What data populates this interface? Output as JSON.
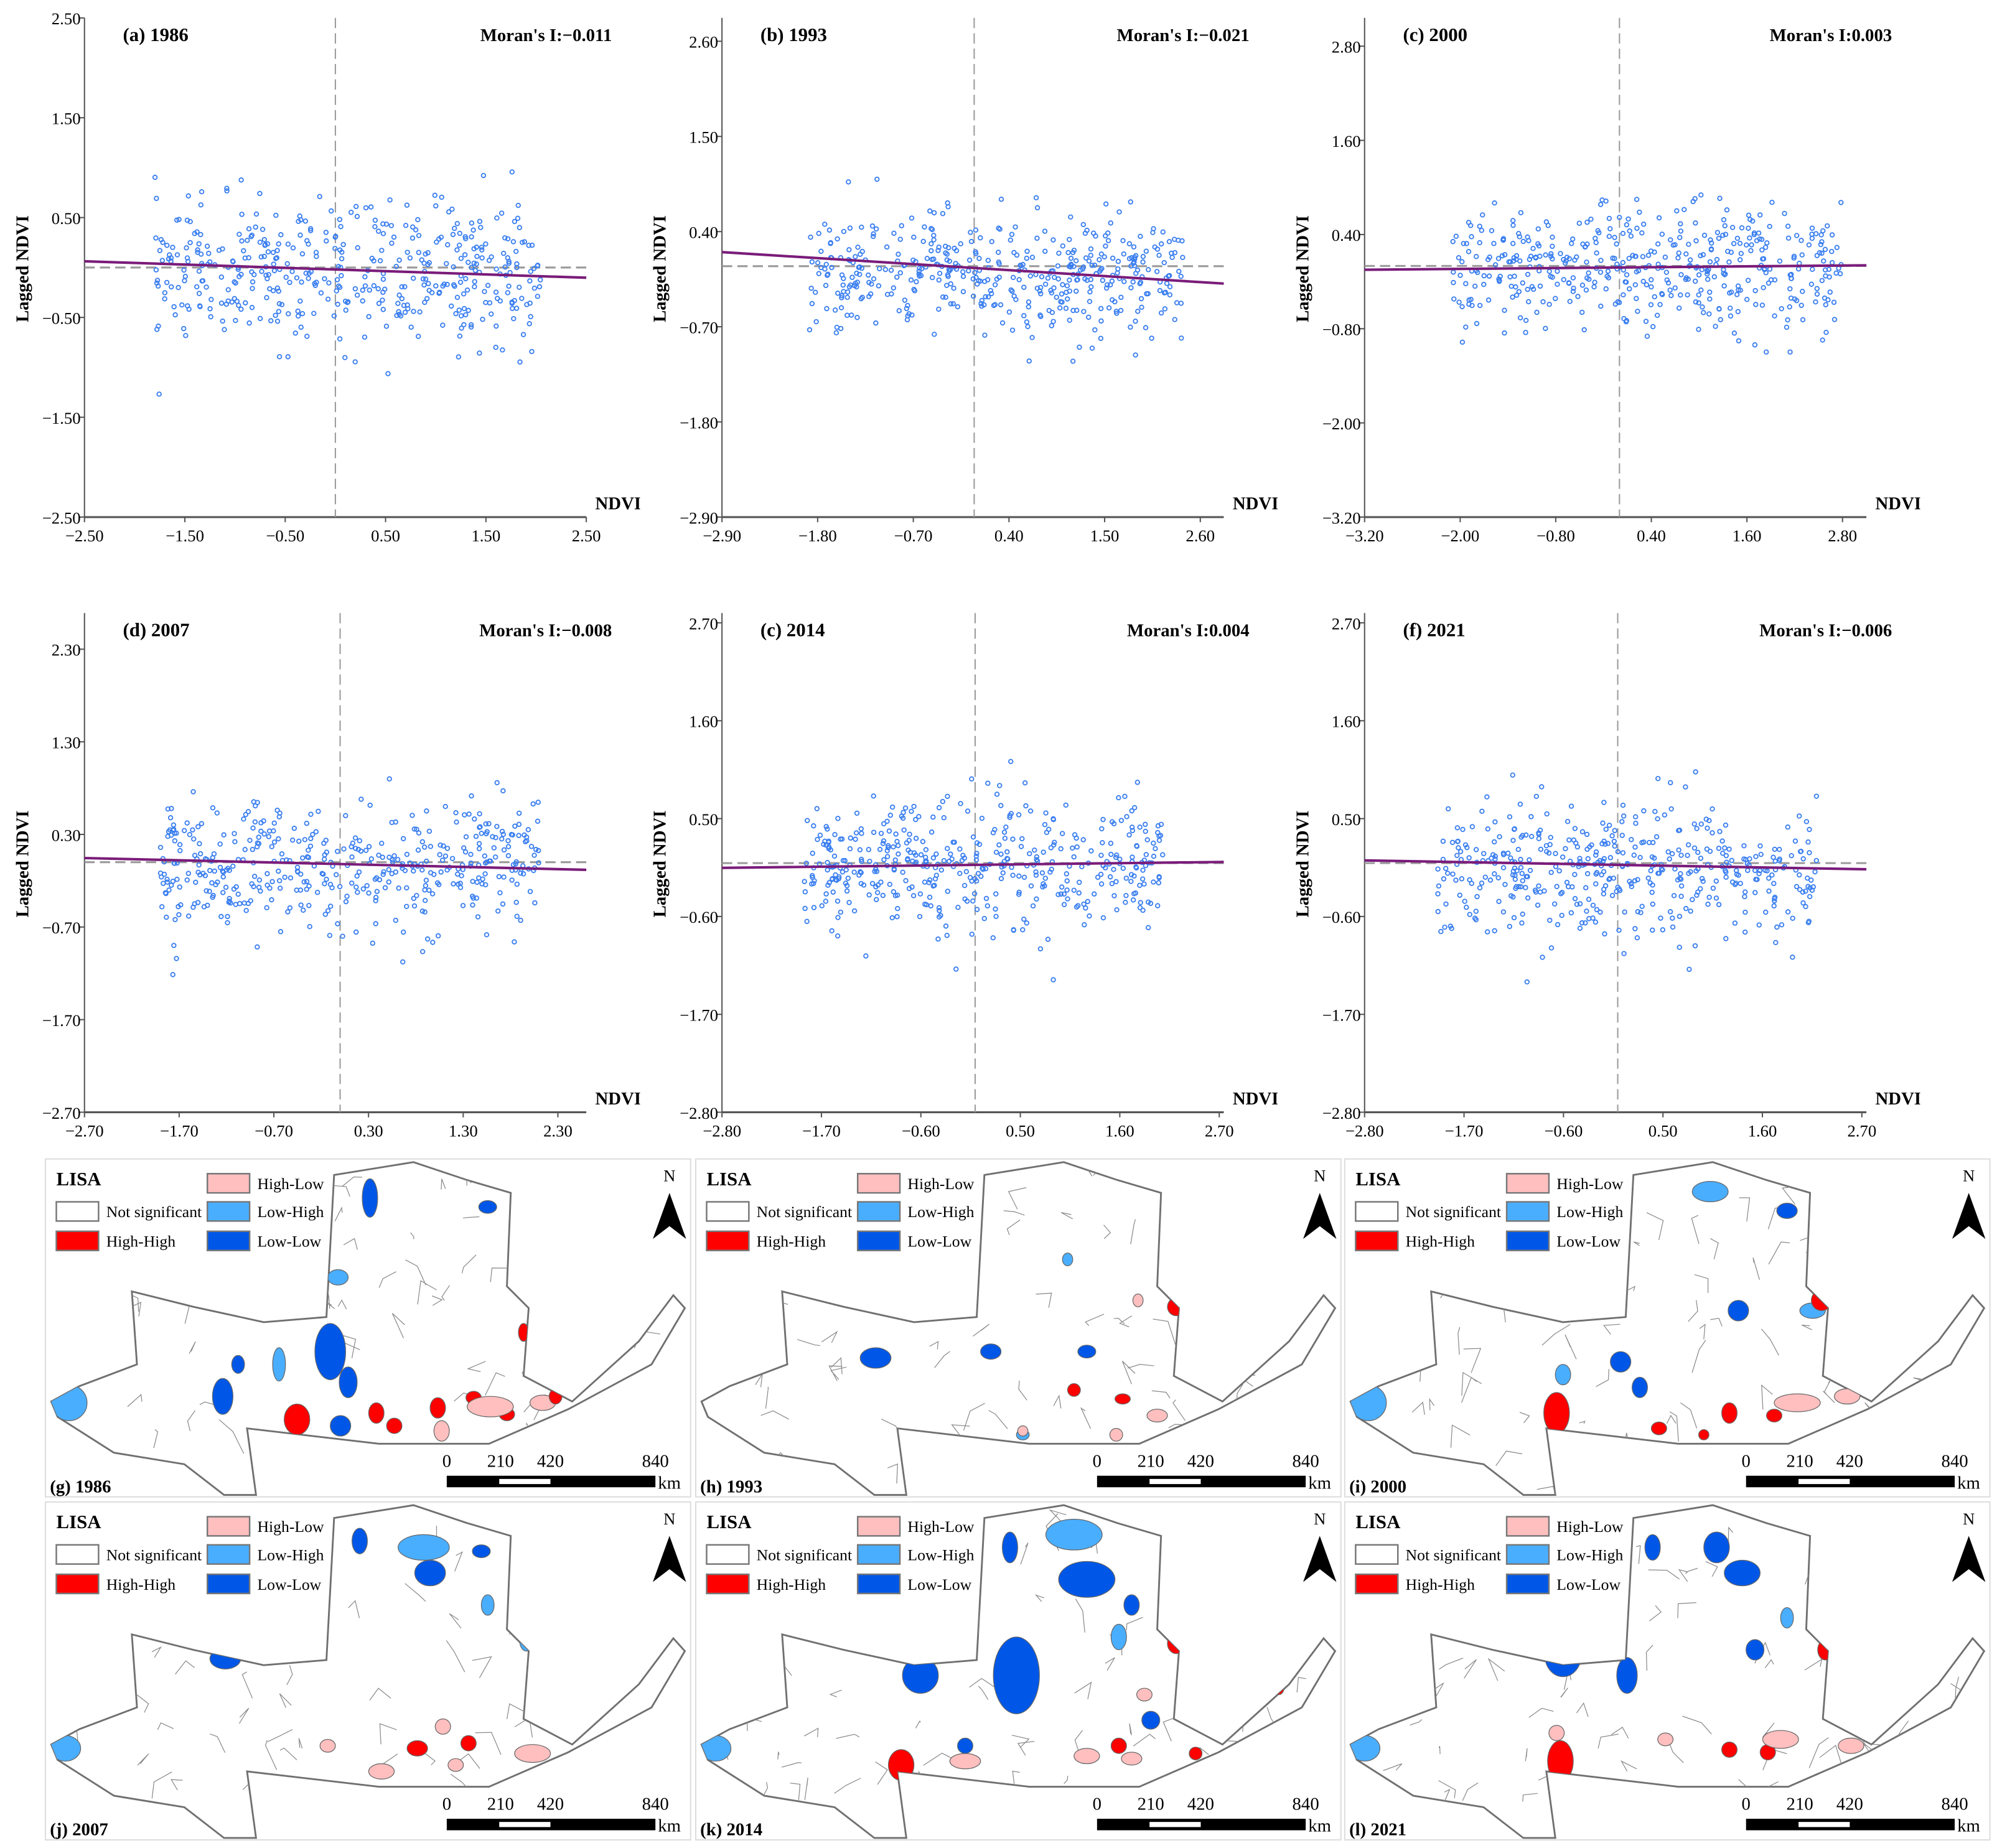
{
  "chart_data": [
    {
      "type": "scatter",
      "panel": "(a) 1986",
      "moran_label": "Moran's I:",
      "moran": "−0.011",
      "moran_value": -0.011,
      "xlabel": "NDVI",
      "ylabel": "Lagged NDVI",
      "xticks": [
        "−2.50",
        "−1.50",
        "−0.50",
        "0.50",
        "1.50",
        "2.50"
      ],
      "xtick_values": [
        -2.5,
        -1.5,
        -0.5,
        0.5,
        1.5,
        2.5
      ],
      "yticks": [
        "2.50",
        "1.50",
        "0.50",
        "−0.50",
        "−1.50",
        "−2.50"
      ],
      "ytick_values": [
        2.5,
        1.5,
        0.5,
        -0.5,
        -1.5,
        -2.5
      ],
      "xlim": [
        -2.5,
        2.5
      ],
      "ylim": [
        -2.5,
        2.5
      ],
      "points": {
        "approx_count": 450,
        "x_range": [
          -1.8,
          2.05
        ],
        "y_mean": -0.05,
        "y_sd": 0.35
      }
    },
    {
      "type": "scatter",
      "panel": "(b) 1993",
      "moran_label": "Moran's I:",
      "moran": "−0.021",
      "moran_value": -0.021,
      "xlabel": "NDVI",
      "ylabel": "Lagged NDVI",
      "xticks": [
        "−2.90",
        "−1.80",
        "−0.70",
        "0.40",
        "1.50",
        "2.60"
      ],
      "xtick_values": [
        -2.9,
        -1.8,
        -0.7,
        0.4,
        1.5,
        2.6
      ],
      "yticks": [
        "2.60",
        "1.50",
        "0.40",
        "−0.70",
        "−1.80",
        "−2.90"
      ],
      "ytick_values": [
        2.6,
        1.5,
        0.4,
        -0.7,
        -1.8,
        -2.9
      ],
      "xlim": [
        -2.9,
        2.87
      ],
      "ylim": [
        -2.9,
        2.87
      ],
      "points": {
        "approx_count": 450,
        "x_range": [
          -1.9,
          2.4
        ],
        "y_mean": -0.1,
        "y_sd": 0.35
      }
    },
    {
      "type": "scatter",
      "panel": "(c) 2000",
      "moran_label": "Moran's I:",
      "moran": "0.003",
      "moran_value": 0.003,
      "xlabel": "NDVI",
      "ylabel": "Lagged NDVI",
      "xticks": [
        "−3.20",
        "−2.00",
        "−0.80",
        "0.40",
        "1.60",
        "2.80"
      ],
      "xtick_values": [
        -3.2,
        -2.0,
        -0.8,
        0.4,
        1.6,
        2.8
      ],
      "yticks": [
        "2.80",
        "1.60",
        "0.40",
        "−0.80",
        "−2.00",
        "−3.20"
      ],
      "ytick_values": [
        2.8,
        1.6,
        0.4,
        -0.8,
        -2.0,
        -3.2
      ],
      "xlim": [
        -3.2,
        3.1
      ],
      "ylim": [
        -3.2,
        3.16
      ],
      "points": {
        "approx_count": 450,
        "x_range": [
          -2.1,
          2.8
        ],
        "y_mean": -0.05,
        "y_sd": 0.4
      }
    },
    {
      "type": "scatter",
      "panel": "(d) 2007",
      "moran_label": "Moran's I:",
      "moran": "−0.008",
      "moran_value": -0.008,
      "xlabel": "NDVI",
      "ylabel": "Lagged NDVI",
      "xticks": [
        "−2.70",
        "−1.70",
        "−0.70",
        "0.30",
        "1.30",
        "2.30"
      ],
      "xtick_values": [
        -2.7,
        -1.7,
        -0.7,
        0.3,
        1.3,
        2.3
      ],
      "yticks": [
        "2.30",
        "1.30",
        "0.30",
        "−0.70",
        "−1.70",
        "−2.70"
      ],
      "ytick_values": [
        2.3,
        1.3,
        0.3,
        -0.7,
        -1.7,
        -2.7
      ],
      "xlim": [
        -2.7,
        2.6
      ],
      "ylim": [
        -2.7,
        2.69
      ],
      "points": {
        "approx_count": 450,
        "x_range": [
          -1.9,
          2.1
        ],
        "y_mean": -0.05,
        "y_sd": 0.35
      }
    },
    {
      "type": "scatter",
      "panel": "(c) 2014",
      "moran_label": "Moran's I:",
      "moran": "0.004",
      "moran_value": 0.004,
      "xlabel": "NDVI",
      "ylabel": "Lagged NDVI",
      "xticks": [
        "−2.80",
        "−1.70",
        "−0.60",
        "0.50",
        "1.60",
        "2.70"
      ],
      "xtick_values": [
        -2.8,
        -1.7,
        -0.6,
        0.5,
        1.6,
        2.7
      ],
      "yticks": [
        "2.70",
        "1.60",
        "0.50",
        "−0.60",
        "−1.70",
        "−2.80"
      ],
      "ytick_values": [
        2.7,
        1.6,
        0.5,
        -0.6,
        -1.7,
        -2.8
      ],
      "xlim": [
        -2.8,
        2.75
      ],
      "ylim": [
        -2.8,
        2.81
      ],
      "points": {
        "approx_count": 450,
        "x_range": [
          -1.9,
          2.1
        ],
        "y_mean": -0.05,
        "y_sd": 0.38
      }
    },
    {
      "type": "scatter",
      "panel": "(f) 2021",
      "moran_label": "Moran's I:",
      "moran": "−0.006",
      "moran_value": -0.006,
      "xlabel": "NDVI",
      "ylabel": "Lagged NDVI",
      "xticks": [
        "−2.80",
        "−1.70",
        "−0.60",
        "0.50",
        "1.60",
        "2.70"
      ],
      "xtick_values": [
        -2.8,
        -1.7,
        -0.6,
        0.5,
        1.6,
        2.7
      ],
      "yticks": [
        "2.70",
        "1.60",
        "0.50",
        "−0.60",
        "−1.70",
        "−2.80"
      ],
      "ytick_values": [
        2.7,
        1.6,
        0.5,
        -0.6,
        -1.7,
        -2.8
      ],
      "xlim": [
        -2.8,
        2.75
      ],
      "ylim": [
        -2.8,
        2.81
      ],
      "points": {
        "approx_count": 450,
        "x_range": [
          -2.0,
          2.2
        ],
        "y_mean": -0.05,
        "y_sd": 0.38
      }
    }
  ],
  "maps": [
    {
      "label": "(g) 1986"
    },
    {
      "label": "(h) 1993"
    },
    {
      "label": "(i) 2000"
    },
    {
      "label": "(j) 2007"
    },
    {
      "label": "(k) 2014"
    },
    {
      "label": "(l) 2021"
    }
  ],
  "legend": {
    "title": "LISA",
    "items": [
      {
        "key": "NS",
        "label": "Not significant",
        "color": "#ffffff"
      },
      {
        "key": "HH",
        "label": "High-High",
        "color": "#ff0000"
      },
      {
        "key": "HL",
        "label": "High-Low",
        "color": "#ffbfbf"
      },
      {
        "key": "LH",
        "label": "Low-High",
        "color": "#4aaeff"
      },
      {
        "key": "LL",
        "label": "Low-Low",
        "color": "#0057e7"
      }
    ]
  },
  "north": "N",
  "scale": {
    "ticks": [
      "0",
      "210",
      "420",
      "840"
    ],
    "unit": "km"
  },
  "colors": {
    "points": "#3b7ff0",
    "regression": "#7a1c7a",
    "reference": "#9a9a9a",
    "axis": "#555555"
  }
}
